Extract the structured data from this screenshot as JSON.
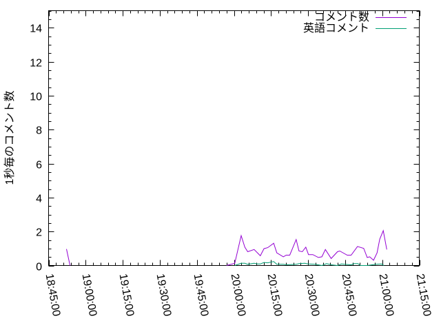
{
  "chart_data": {
    "type": "line",
    "title": "",
    "xlabel": "",
    "ylabel": "1秒毎のコメント数",
    "xlim": [
      "18:45:00",
      "21:15:00"
    ],
    "ylim": [
      0,
      15
    ],
    "x_ticks": [
      "18:45:00",
      "19:00:00",
      "19:15:00",
      "19:30:00",
      "19:45:00",
      "20:00:00",
      "20:15:00",
      "20:30:00",
      "20:45:00",
      "21:00:00",
      "21:15:00"
    ],
    "y_ticks": [
      0,
      2,
      4,
      6,
      8,
      10,
      12,
      14
    ],
    "grid": false,
    "legend_position": "top-right",
    "series": [
      {
        "name": "コメント数",
        "color": "#9400d3",
        "segments": [
          [
            [
              "18:52:15",
              0.97
            ],
            [
              "18:53:40",
              0
            ]
          ],
          [
            [
              "19:57:00",
              0
            ],
            [
              "20:00:20",
              0.13
            ],
            [
              "20:02:55",
              1.76
            ],
            [
              "20:04:25",
              1.08
            ],
            [
              "20:05:35",
              0.81
            ],
            [
              "20:08:10",
              0.94
            ],
            [
              "20:10:40",
              0.57
            ],
            [
              "20:12:10",
              0.99
            ],
            [
              "20:13:40",
              1.05
            ],
            [
              "20:16:05",
              1.31
            ],
            [
              "20:17:20",
              0.74
            ],
            [
              "20:20:00",
              0.51
            ],
            [
              "20:21:10",
              0.61
            ],
            [
              "20:22:35",
              0.61
            ],
            [
              "20:25:10",
              1.53
            ],
            [
              "20:26:20",
              0.85
            ],
            [
              "20:27:40",
              0.81
            ],
            [
              "20:29:05",
              1.08
            ],
            [
              "20:30:10",
              0.64
            ],
            [
              "20:31:55",
              0.64
            ],
            [
              "20:34:10",
              0.47
            ],
            [
              "20:35:35",
              0.51
            ],
            [
              "20:37:00",
              0.94
            ],
            [
              "20:39:20",
              0.41
            ],
            [
              "20:41:55",
              0.81
            ],
            [
              "20:42:50",
              0.85
            ],
            [
              "20:45:50",
              0.61
            ],
            [
              "20:47:25",
              0.61
            ],
            [
              "20:50:00",
              1.12
            ],
            [
              "20:52:30",
              1.01
            ],
            [
              "20:53:55",
              0.47
            ],
            [
              "20:54:55",
              0.51
            ],
            [
              "20:56:30",
              0.31
            ],
            [
              "20:57:55",
              0.74
            ],
            [
              "20:59:00",
              1.55
            ],
            [
              "21:00:25",
              2.05
            ],
            [
              "21:01:50",
              0.94
            ]
          ]
        ]
      },
      {
        "name": "英語コメント",
        "color": "#009e73",
        "segments": [
          [
            [
              "20:00:20",
              0
            ],
            [
              "20:02:55",
              0.13
            ],
            [
              "20:04:25",
              0.13
            ],
            [
              "20:05:35",
              0.07
            ],
            [
              "20:08:10",
              0.13
            ],
            [
              "20:09:30",
              0.09
            ],
            [
              "20:10:40",
              0.09
            ],
            [
              "20:12:10",
              0.18
            ],
            [
              "20:13:40",
              0.16
            ],
            [
              "20:16:05",
              0.23
            ],
            [
              "20:17:20",
              0.07
            ],
            [
              "20:20:00",
              0.07
            ],
            [
              "20:21:10",
              0.04
            ],
            [
              "20:25:10",
              0.07
            ],
            [
              "20:26:20",
              0.11
            ],
            [
              "20:28:40",
              0.13
            ],
            [
              "20:30:00",
              0.09
            ],
            [
              "20:32:45",
              0.07
            ],
            [
              "20:35:35",
              0
            ],
            [
              "20:37:30",
              0.11
            ],
            [
              "20:39:20",
              0.04
            ],
            [
              "20:41:55",
              0
            ],
            [
              "20:43:30",
              0.09
            ],
            [
              "20:44:50",
              0.07
            ],
            [
              "20:47:25",
              0.04
            ],
            [
              "20:48:35",
              0.11
            ],
            [
              "20:50:10",
              0.11
            ],
            [
              "20:51:15",
              0
            ],
            [
              "20:53:55",
              0
            ],
            [
              "20:57:30",
              0.07
            ],
            [
              "20:59:45",
              0.09
            ],
            [
              "21:00:40",
              0
            ]
          ]
        ]
      }
    ]
  }
}
